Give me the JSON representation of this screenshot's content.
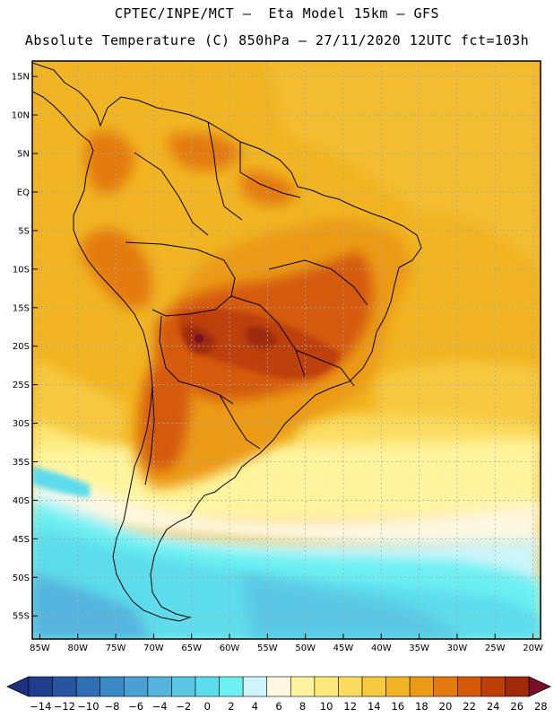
{
  "header": {
    "line1": "CPTEC/INPE/MCT –  Eta Model 15km – GFS",
    "line2": "Absolute Temperature (C) 850hPa – 27/11/2020 12UTC fct=103h"
  },
  "map": {
    "lon_range": [
      -86,
      -19
    ],
    "lat_range": [
      -58,
      17
    ],
    "lat_ticks": [
      "15N",
      "10N",
      "5N",
      "EQ",
      "5S",
      "10S",
      "15S",
      "20S",
      "25S",
      "30S",
      "35S",
      "40S",
      "45S",
      "50S",
      "55S"
    ],
    "lat_values": [
      15,
      10,
      5,
      0,
      -5,
      -10,
      -15,
      -20,
      -25,
      -30,
      -35,
      -40,
      -45,
      -50,
      -55
    ],
    "lon_ticks": [
      "85W",
      "80W",
      "75W",
      "70W",
      "65W",
      "60W",
      "55W",
      "50W",
      "45W",
      "40W",
      "35W",
      "30W",
      "25W",
      "20W"
    ],
    "lon_values": [
      -85,
      -80,
      -75,
      -70,
      -65,
      -60,
      -55,
      -50,
      -45,
      -40,
      -35,
      -30,
      -25,
      -20
    ],
    "grid": true,
    "grid_color": "#aaaaaa"
  },
  "colorbar": {
    "labels": [
      "-14",
      "-12",
      "-10",
      "-8",
      "-6",
      "-4",
      "-2",
      "0",
      "2",
      "4",
      "6",
      "8",
      "10",
      "12",
      "14",
      "16",
      "18",
      "20",
      "22",
      "24",
      "26",
      "28"
    ],
    "under_color": "#1c2f80",
    "over_color": "#7a0f2c",
    "colors": [
      "#213e8e",
      "#2756a0",
      "#2f6fb3",
      "#3a88c4",
      "#4aa0d2",
      "#55b4de",
      "#5ac8e4",
      "#5ddcec",
      "#6cf0f2",
      "#cdf5fb",
      "#fff8e0",
      "#fff49e",
      "#fde979",
      "#fbdc5e",
      "#f6c93f",
      "#f1b422",
      "#eb9a18",
      "#e37a0e",
      "#d45a08",
      "#bd3f07",
      "#9e2a08"
    ]
  }
}
